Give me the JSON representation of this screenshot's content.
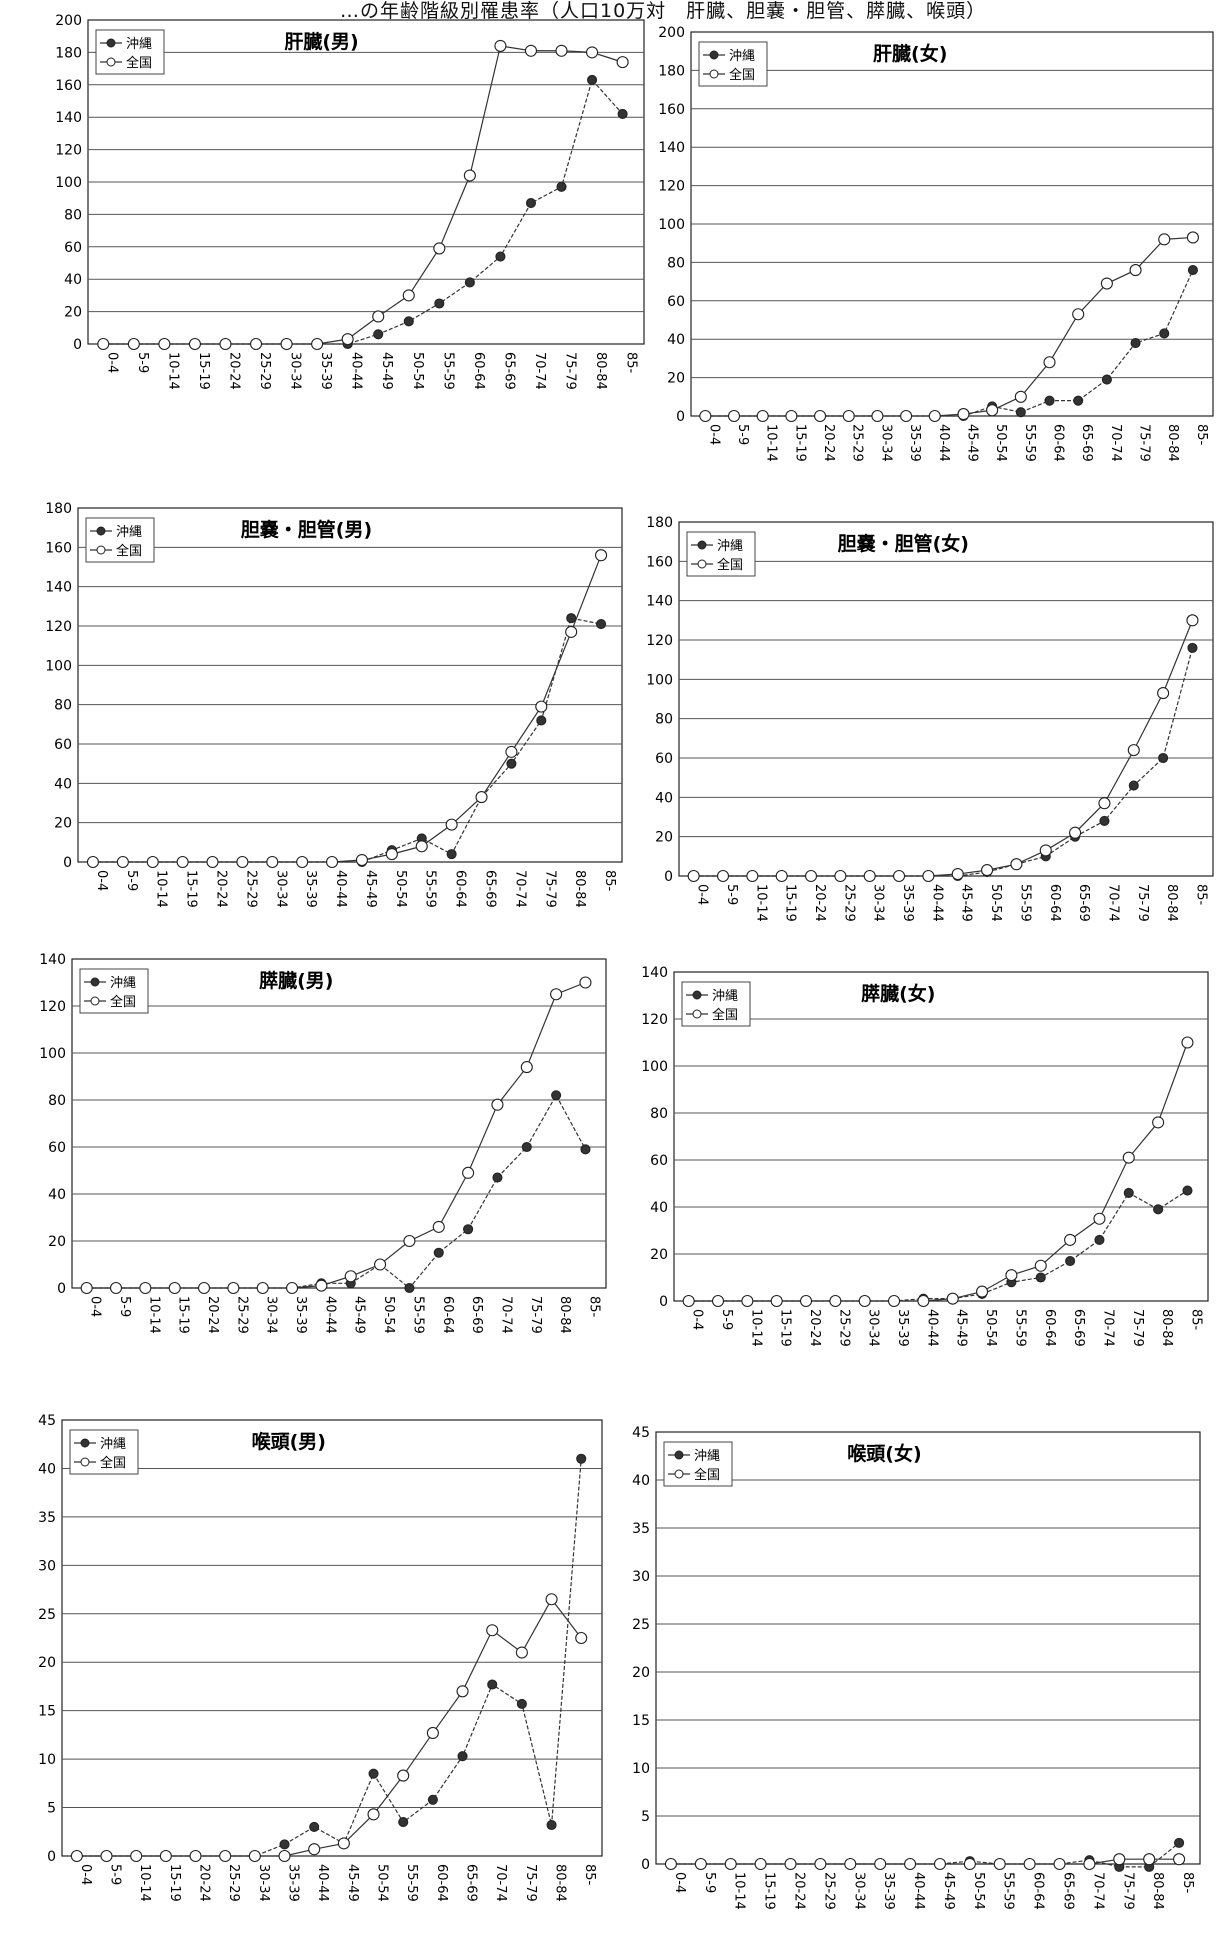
{
  "header": "…の年齢階級別罹患率（人口10万対　肝臓、胆嚢・胆管、膵臓、喉頭）",
  "legend_labels": [
    "沖縄",
    "全国"
  ],
  "chart_data": [
    {
      "id": "liver-m",
      "type": "line",
      "title": "肝臓(男)",
      "ylim": [
        0,
        200
      ],
      "ystep": 20,
      "categories": [
        "0-4",
        "5-9",
        "10-14",
        "15-19",
        "20-24",
        "25-29",
        "30-34",
        "35-39",
        "40-44",
        "45-49",
        "50-54",
        "55-59",
        "60-64",
        "65-69",
        "70-74",
        "75-79",
        "80-84",
        "85-"
      ],
      "series": [
        {
          "name": "沖縄",
          "values": [
            0,
            0,
            0,
            0,
            0,
            0,
            0,
            0,
            0,
            6,
            14,
            25,
            38,
            54,
            87,
            97,
            163,
            142
          ]
        },
        {
          "name": "全国",
          "values": [
            0,
            0,
            0,
            0,
            0,
            0,
            0,
            0,
            3,
            17,
            30,
            59,
            104,
            184,
            181,
            181,
            180,
            174
          ]
        }
      ]
    },
    {
      "id": "liver-f",
      "type": "line",
      "title": "肝臓(女)",
      "ylim": [
        0,
        200
      ],
      "ystep": 20,
      "categories": [
        "0-4",
        "5-9",
        "10-14",
        "15-19",
        "20-24",
        "25-29",
        "30-34",
        "35-39",
        "40-44",
        "45-49",
        "50-54",
        "55-59",
        "60-64",
        "65-69",
        "70-74",
        "75-79",
        "80-84",
        "85-"
      ],
      "series": [
        {
          "name": "沖縄",
          "values": [
            0,
            0,
            0,
            0,
            0,
            0,
            0,
            0,
            0,
            0,
            5,
            2,
            8,
            8,
            19,
            38,
            43,
            76
          ]
        },
        {
          "name": "全国",
          "values": [
            0,
            0,
            0,
            0,
            0,
            0,
            0,
            0,
            0,
            1,
            3,
            10,
            28,
            53,
            69,
            76,
            92,
            93
          ]
        }
      ]
    },
    {
      "id": "gallbladder-m",
      "type": "line",
      "title": "胆嚢・胆管(男)",
      "ylim": [
        0,
        180
      ],
      "ystep": 20,
      "categories": [
        "0-4",
        "5-9",
        "10-14",
        "15-19",
        "20-24",
        "25-29",
        "30-34",
        "35-39",
        "40-44",
        "45-49",
        "50-54",
        "55-59",
        "60-64",
        "65-69",
        "70-74",
        "75-79",
        "80-84",
        "85-"
      ],
      "series": [
        {
          "name": "沖縄",
          "values": [
            0,
            0,
            0,
            0,
            0,
            0,
            0,
            0,
            0,
            0,
            6,
            12,
            4,
            33,
            50,
            72,
            124,
            121
          ]
        },
        {
          "name": "全国",
          "values": [
            0,
            0,
            0,
            0,
            0,
            0,
            0,
            0,
            0,
            1,
            4,
            8,
            19,
            33,
            56,
            79,
            117,
            156
          ]
        }
      ]
    },
    {
      "id": "gallbladder-f",
      "type": "line",
      "title": "胆嚢・胆管(女)",
      "ylim": [
        0,
        180
      ],
      "ystep": 20,
      "categories": [
        "0-4",
        "5-9",
        "10-14",
        "15-19",
        "20-24",
        "25-29",
        "30-34",
        "35-39",
        "40-44",
        "45-49",
        "50-54",
        "55-59",
        "60-64",
        "65-69",
        "70-74",
        "75-79",
        "80-84",
        "85-"
      ],
      "series": [
        {
          "name": "沖縄",
          "values": [
            0,
            0,
            0,
            0,
            0,
            0,
            0,
            0,
            0,
            0,
            2,
            6,
            10,
            20,
            28,
            46,
            60,
            116
          ]
        },
        {
          "name": "全国",
          "values": [
            0,
            0,
            0,
            0,
            0,
            0,
            0,
            0,
            0,
            1,
            3,
            6,
            13,
            22,
            37,
            64,
            93,
            130
          ]
        }
      ]
    },
    {
      "id": "pancreas-m",
      "type": "line",
      "title": "膵臓(男)",
      "ylim": [
        0,
        140
      ],
      "ystep": 20,
      "categories": [
        "0-4",
        "5-9",
        "10-14",
        "15-19",
        "20-24",
        "25-29",
        "30-34",
        "35-39",
        "40-44",
        "45-49",
        "50-54",
        "55-59",
        "60-64",
        "65-69",
        "70-74",
        "75-79",
        "80-84",
        "85-"
      ],
      "series": [
        {
          "name": "沖縄",
          "values": [
            0,
            0,
            0,
            0,
            0,
            0,
            0,
            0,
            2,
            2,
            10,
            0,
            15,
            25,
            47,
            60,
            82,
            59
          ]
        },
        {
          "name": "全国",
          "values": [
            0,
            0,
            0,
            0,
            0,
            0,
            0,
            0,
            1,
            5,
            10,
            20,
            26,
            49,
            78,
            94,
            125,
            130
          ]
        }
      ]
    },
    {
      "id": "pancreas-f",
      "type": "line",
      "title": "膵臓(女)",
      "ylim": [
        0,
        140
      ],
      "ystep": 20,
      "categories": [
        "0-4",
        "5-9",
        "10-14",
        "15-19",
        "20-24",
        "25-29",
        "30-34",
        "35-39",
        "40-44",
        "45-49",
        "50-54",
        "55-59",
        "60-64",
        "65-69",
        "70-74",
        "75-79",
        "80-84",
        "85-"
      ],
      "series": [
        {
          "name": "沖縄",
          "values": [
            0,
            0,
            0,
            0,
            0,
            0,
            0,
            0,
            1,
            1,
            3,
            8,
            10,
            17,
            26,
            46,
            39,
            47
          ]
        },
        {
          "name": "全国",
          "values": [
            0,
            0,
            0,
            0,
            0,
            0,
            0,
            0,
            0,
            1,
            4,
            11,
            15,
            26,
            35,
            61,
            76,
            110
          ]
        }
      ]
    },
    {
      "id": "larynx-m",
      "type": "line",
      "title": "喉頭(男)",
      "ylim": [
        0,
        45
      ],
      "ystep": 5,
      "categories": [
        "0-4",
        "5-9",
        "10-14",
        "15-19",
        "20-24",
        "25-29",
        "30-34",
        "35-39",
        "40-44",
        "45-49",
        "50-54",
        "55-59",
        "60-64",
        "65-69",
        "70-74",
        "75-79",
        "80-84",
        "85-"
      ],
      "series": [
        {
          "name": "沖縄",
          "values": [
            0,
            0,
            0,
            0,
            0,
            0,
            0,
            1.2,
            3,
            1.3,
            8.5,
            3.5,
            5.8,
            10.3,
            17.7,
            15.7,
            3.2,
            41
          ]
        },
        {
          "name": "全国",
          "values": [
            0,
            0,
            0,
            0,
            0,
            0,
            0,
            0,
            0.7,
            1.3,
            4.3,
            8.3,
            12.7,
            17,
            23.3,
            21,
            26.5,
            22.5
          ]
        }
      ]
    },
    {
      "id": "larynx-f",
      "type": "line",
      "title": "喉頭(女)",
      "ylim": [
        0,
        45
      ],
      "ystep": 5,
      "categories": [
        "0-4",
        "5-9",
        "10-14",
        "15-19",
        "20-24",
        "25-29",
        "30-34",
        "35-39",
        "40-44",
        "45-49",
        "50-54",
        "55-59",
        "60-64",
        "65-69",
        "70-74",
        "75-79",
        "80-84",
        "85-"
      ],
      "series": [
        {
          "name": "沖縄",
          "values": [
            0,
            0,
            0,
            0,
            0,
            0,
            0,
            0,
            0,
            0,
            0.3,
            0,
            0,
            0,
            0.4,
            -0.3,
            -0.3,
            2.2
          ]
        },
        {
          "name": "全国",
          "values": [
            0,
            0,
            0,
            0,
            0,
            0,
            0,
            0,
            0,
            0,
            0,
            0,
            0,
            0,
            0,
            0.5,
            0.5,
            0.5
          ]
        }
      ]
    }
  ]
}
